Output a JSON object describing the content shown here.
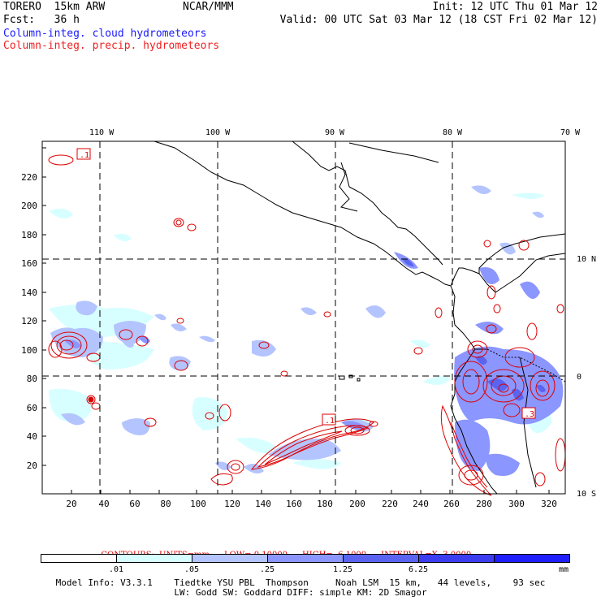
{
  "header": {
    "model": "TORERO  15km ARW",
    "org": "NCAR/MMM",
    "init": "Init: 12 UTC Thu 01 Mar 12",
    "fcst": "Fcst:   36 h",
    "valid": "Valid: 00 UTC Sat 03 Mar 12 (18 CST Fri 02 Mar 12)",
    "field1": "Column-integ. cloud hydrometeors",
    "field2": "Column-integ. precip. hydrometeors"
  },
  "map": {
    "top_lon_labels": [
      "110 W",
      "100 W",
      "90 W",
      "80 W",
      "70 W"
    ],
    "right_lat_labels": [
      "10 N",
      "0",
      "10 S"
    ],
    "y_ticks": [
      "20",
      "40",
      "60",
      "80",
      "100",
      "120",
      "140",
      "160",
      "180",
      "200",
      "220"
    ],
    "x_ticks": [
      "20",
      "40",
      "60",
      "80",
      "100",
      "120",
      "140",
      "160",
      "180",
      "200",
      "220",
      "240",
      "260",
      "280",
      "300",
      "320"
    ],
    "contour_labels": [
      ".1",
      ".1",
      ".3"
    ],
    "colors": {
      "level1": "#d8ffff",
      "level2": "#b4c4ff",
      "level3": "#8c96ff",
      "level4": "#5a64f0",
      "level5": "#3c3cf0",
      "level6": "#1e1eff",
      "contour": "#dd0000",
      "coast": "#000000"
    }
  },
  "contour_info": {
    "label": "CONTOURS:",
    "units": "UNITS=mm",
    "low": "LOW= 0.10000",
    "high": "HIGH=  6.1000",
    "interval": "INTERVAL=X  3.0000"
  },
  "legend": {
    "ticks": [
      ".01",
      ".05",
      ".25",
      "1.25",
      "6.25"
    ],
    "unit": "mm",
    "colors": [
      "#ffffff",
      "#d8ffff",
      "#b4c4ff",
      "#8c96ff",
      "#5a64f0",
      "#3c3cf0",
      "#1e1eff"
    ]
  },
  "footer": {
    "line1": "Model Info: V3.3.1    Tiedtke YSU PBL  Thompson     Noah LSM  15 km,   44 levels,    93 sec",
    "line2": "LW: Godd SW: Goddard DIFF: simple KM: 2D Smagor"
  }
}
